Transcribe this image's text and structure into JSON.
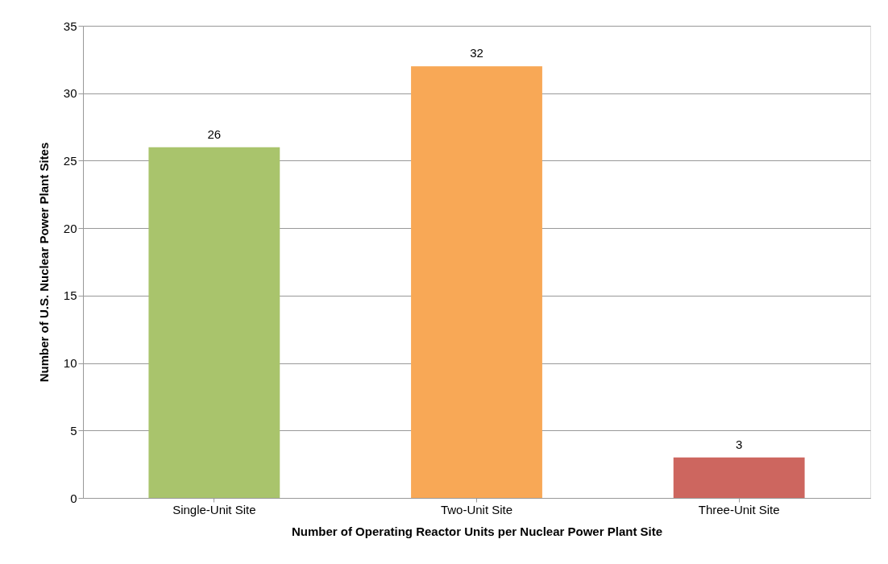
{
  "chart_data": {
    "type": "bar",
    "xlabel": "Number of Operating Reactor Units per Nuclear Power Plant Site",
    "ylabel": "Number of U.S. Nuclear Power Plant Sites",
    "categories": [
      "Single-Unit Site",
      "Two-Unit Site",
      "Three-Unit Site"
    ],
    "values": [
      26,
      32,
      3
    ],
    "colors": [
      "#a9c46c",
      "#f8a856",
      "#cd665f"
    ],
    "ylim": [
      0,
      35
    ],
    "yticks": [
      0,
      5,
      10,
      15,
      20,
      25,
      30,
      35
    ],
    "grid": "y",
    "data_labels": true
  }
}
